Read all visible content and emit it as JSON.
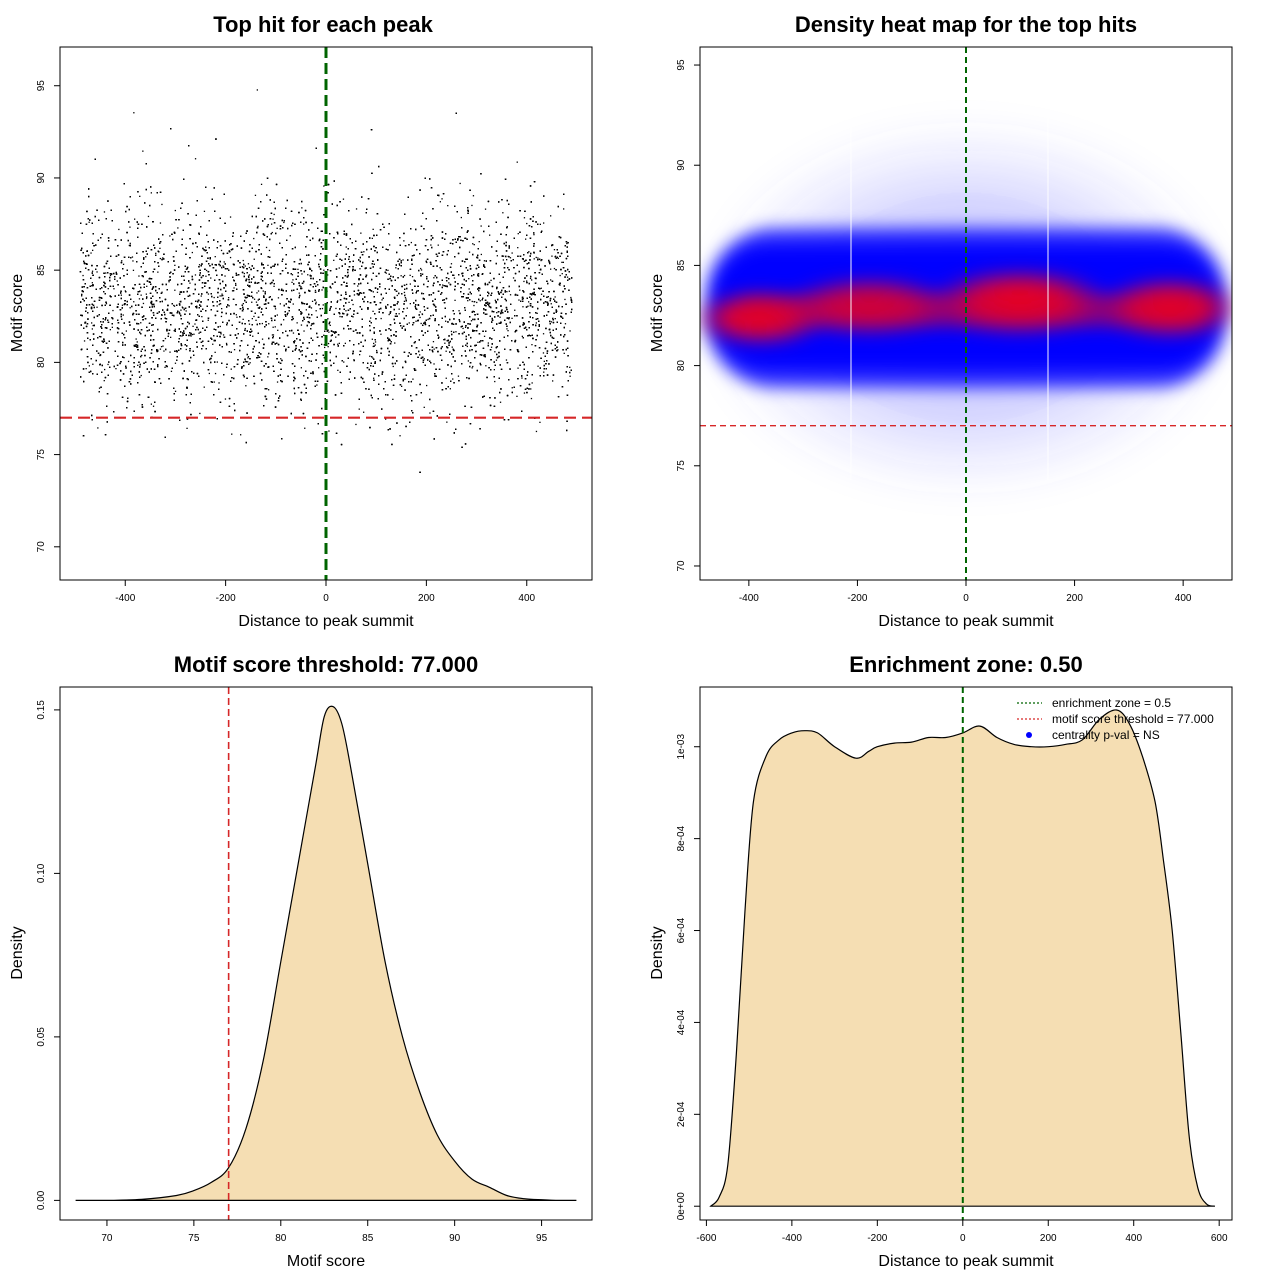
{
  "colors": {
    "fill": "#f5deb3",
    "threshold_line": "#d62728",
    "center_line": "#006400",
    "heat_low": "#0000ff",
    "heat_high": "#ff0000"
  },
  "chart_data": [
    {
      "id": "scatter",
      "type": "scatter",
      "title": "Top hit for each peak",
      "xlabel": "Distance to peak summit",
      "ylabel": "Motif score",
      "xlim": [
        -530,
        530
      ],
      "ylim": [
        68.2,
        97.1
      ],
      "xticks": [
        -400,
        -200,
        0,
        200,
        400
      ],
      "yticks": [
        70,
        75,
        80,
        85,
        90,
        95
      ],
      "vline": 0,
      "hline": 77,
      "n_points": 12000,
      "x_range": [
        -490,
        490
      ],
      "score_mean": 83,
      "score_sd": 2.7
    },
    {
      "id": "heatmap",
      "type": "heatmap",
      "title": "Density heat map for the top hits",
      "xlabel": "Distance to peak summit",
      "ylabel": "Motif score",
      "xlim": [
        -490,
        490
      ],
      "ylim": [
        69.3,
        95.9
      ],
      "xticks": [
        -400,
        -200,
        0,
        200,
        400
      ],
      "yticks": [
        70,
        75,
        80,
        85,
        90,
        95
      ],
      "vline": 0,
      "hline": 77,
      "density_center": 83,
      "density_x_range": [
        -490,
        490
      ]
    },
    {
      "id": "score_density",
      "type": "area",
      "title": "Motif score threshold: 77.000",
      "xlabel": "Motif score",
      "ylabel": "Density",
      "xlim": [
        67.3,
        97.9
      ],
      "ylim": [
        -0.006,
        0.157
      ],
      "xticks": [
        70,
        75,
        80,
        85,
        90,
        95
      ],
      "yticks": [
        0.0,
        0.05,
        0.1,
        0.15
      ],
      "ytick_labels": [
        "0.00",
        "0.05",
        "0.10",
        "0.15"
      ],
      "vline": 77,
      "x": [
        68.2,
        70,
        72,
        74,
        75,
        76,
        77,
        78,
        79,
        80,
        81,
        82,
        82.5,
        83,
        83.5,
        84,
        85,
        86,
        87,
        88,
        89,
        90,
        91,
        92,
        93,
        94,
        95,
        96,
        97
      ],
      "values": [
        0.0,
        0.0,
        0.0003,
        0.0015,
        0.003,
        0.0055,
        0.01,
        0.022,
        0.043,
        0.073,
        0.103,
        0.133,
        0.148,
        0.151,
        0.146,
        0.133,
        0.103,
        0.073,
        0.05,
        0.033,
        0.02,
        0.012,
        0.0065,
        0.004,
        0.0015,
        0.0005,
        0.0002,
        0.0,
        0.0
      ]
    },
    {
      "id": "position_density",
      "type": "area",
      "title": "Enrichment zone: 0.50",
      "xlabel": "Distance to peak summit",
      "ylabel": "Density",
      "xlim": [
        -615,
        630
      ],
      "ylim": [
        -3e-05,
        0.00113
      ],
      "xticks": [
        -600,
        -400,
        -200,
        0,
        200,
        400,
        600
      ],
      "yticks": [
        0,
        0.0002,
        0.0004,
        0.0006,
        0.0008,
        0.001
      ],
      "ytick_labels": [
        "0e+00",
        "2e-04",
        "4e-04",
        "6e-04",
        "8e-04",
        "1e-03"
      ],
      "vline": 0,
      "x": [
        -590,
        -570,
        -550,
        -530,
        -510,
        -490,
        -460,
        -430,
        -400,
        -370,
        -340,
        -300,
        -250,
        -220,
        -200,
        -160,
        -120,
        -80,
        -40,
        0,
        40,
        80,
        120,
        160,
        200,
        240,
        280,
        320,
        360,
        390,
        420,
        450,
        470,
        490,
        510,
        530,
        550,
        570,
        590
      ],
      "values": [
        0.0,
        2e-05,
        9e-05,
        0.00033,
        0.00064,
        0.00088,
        0.00098,
        0.001015,
        0.00103,
        0.001035,
        0.00103,
        0.001,
        0.000975,
        0.00099,
        0.001,
        0.001008,
        0.00101,
        0.00102,
        0.00102,
        0.00103,
        0.001045,
        0.00102,
        0.001005,
        0.001,
        0.001,
        0.001005,
        0.001015,
        0.00106,
        0.00108,
        0.00105,
        0.00098,
        0.00088,
        0.00075,
        0.0006,
        0.00038,
        0.00015,
        4e-05,
        5e-06,
        0.0
      ],
      "legend": {
        "position": "top-right",
        "entries": [
          {
            "label": "enrichment zone = 0.5",
            "style": "dotted-green"
          },
          {
            "label": "motif score threshold = 77.000",
            "style": "dotted-red"
          },
          {
            "label": "centrality p-val = NS",
            "style": "blue-point"
          }
        ]
      }
    }
  ]
}
